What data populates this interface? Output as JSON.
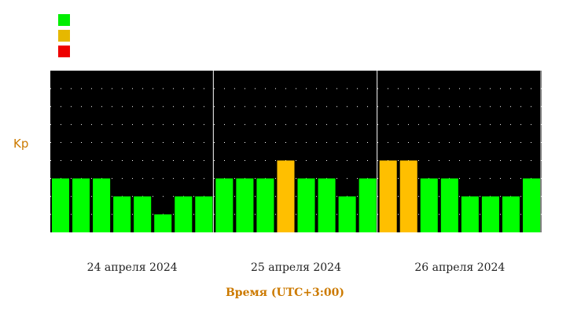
{
  "chart_data": {
    "type": "bar",
    "ylabel": "Kp",
    "xlabel": "Время (UTC+3:00)",
    "day_labels": [
      "24 апреля 2024",
      "25 апреля 2024",
      "26 апреля 2024"
    ],
    "values": [
      3,
      3,
      3,
      2,
      2,
      1,
      2,
      2,
      3,
      3,
      3,
      4,
      3,
      3,
      2,
      3,
      4,
      4,
      3,
      3,
      2,
      2,
      2,
      3
    ],
    "ylim": [
      0,
      9
    ],
    "legend": [
      "#00ee00",
      "#e6b800",
      "#ee0000"
    ],
    "colors": {
      "background": "#000000",
      "grid": "#ffffff",
      "low": "#00ff00",
      "moderate": "#ffbf00",
      "high": "#ff0000",
      "label": "#cc7a00"
    },
    "grid": "dotted"
  }
}
